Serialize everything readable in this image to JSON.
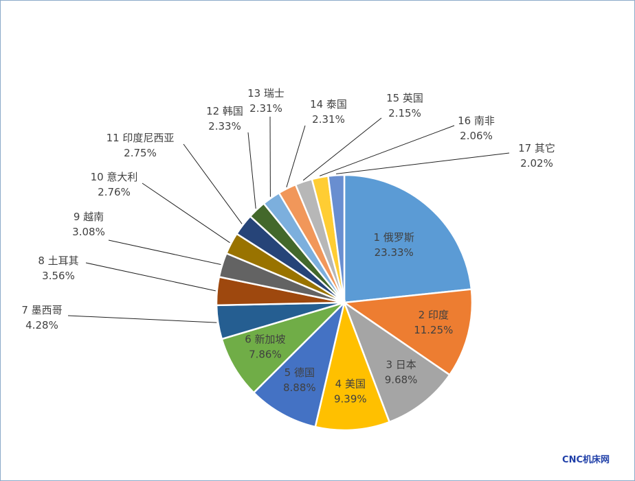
{
  "chart_data": {
    "type": "pie",
    "title": "",
    "categories": [
      "1 俄罗斯",
      "2 印度",
      "3 日本",
      "4 美国",
      "5 德国",
      "6 新加坡",
      "7 墨西哥",
      "8 土耳其",
      "9 越南",
      "10 意大利",
      "11 印度尼西亚",
      "12 韩国",
      "13 瑞士",
      "14 泰国",
      "15 英国",
      "16 南非",
      "17 其它"
    ],
    "values": [
      23.33,
      11.25,
      9.68,
      9.39,
      8.88,
      7.86,
      4.28,
      3.56,
      3.08,
      2.76,
      2.75,
      2.33,
      2.31,
      2.31,
      2.15,
      2.06,
      2.02
    ],
    "value_labels": [
      "23.33%",
      "11.25%",
      "9.68%",
      "9.39%",
      "8.88%",
      "7.86%",
      "4.28%",
      "3.56%",
      "3.08%",
      "2.76%",
      "2.75%",
      "2.33%",
      "2.31%",
      "2.31%",
      "2.15%",
      "2.06%",
      "2.02%"
    ],
    "colors": [
      "#5b9bd5",
      "#ed7d31",
      "#a5a5a5",
      "#ffc000",
      "#4472c4",
      "#70ad47",
      "#255e91",
      "#9e480e",
      "#636363",
      "#997300",
      "#264478",
      "#43682b",
      "#7cafdd",
      "#f1975a",
      "#b7b7b7",
      "#ffcd33",
      "#698ed0"
    ],
    "legend": "none"
  },
  "watermark": "CNC机床网"
}
